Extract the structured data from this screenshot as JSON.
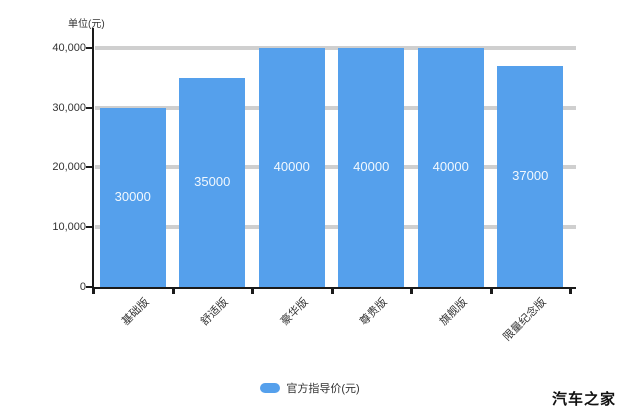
{
  "watermark": "汽车之家",
  "axis_unit_label": "单位(元)",
  "legend": {
    "label": "官方指导价(元)",
    "swatch_color": "#55a0ec"
  },
  "chart_data": {
    "type": "bar",
    "title": "",
    "xlabel": "",
    "ylabel": "单位(元)",
    "categories": [
      "基础版",
      "舒适版",
      "豪华版",
      "尊贵版",
      "旗舰版",
      "限量纪念版"
    ],
    "values": [
      30000,
      35000,
      40000,
      40000,
      40000,
      37000
    ],
    "bar_value_labels": [
      "30000",
      "35000",
      "40000",
      "40000",
      "40000",
      "37000"
    ],
    "y_tick_labels": [
      "0",
      "10,000",
      "20,000",
      "30,000",
      "40,000"
    ],
    "y_tick_values": [
      0,
      10000,
      20000,
      30000,
      40000
    ],
    "ylim": [
      0,
      43000
    ],
    "grid": "horizontal",
    "legend_position": "bottom",
    "bar_color": "#55a0ec",
    "grid_color": "#cfcfcf",
    "axis_color": "#1a1a1a",
    "value_label_color": "rgba(255,255,255,0.92)",
    "tick_label_color": "#333333"
  }
}
